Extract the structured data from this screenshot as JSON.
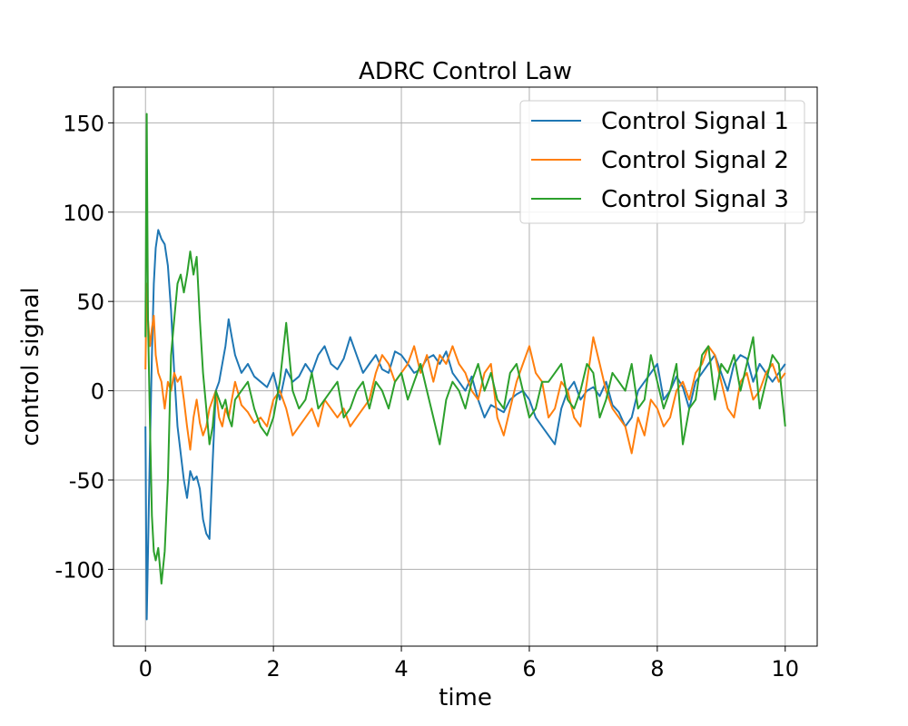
{
  "chart_data": {
    "type": "line",
    "title": "ADRC Control Law",
    "xlabel": "time",
    "ylabel": "control signal",
    "xlim": [
      -0.5,
      10.5
    ],
    "ylim": [
      -143,
      170
    ],
    "xticks": [
      0,
      2,
      4,
      6,
      8,
      10
    ],
    "yticks": [
      -100,
      -50,
      0,
      50,
      100,
      150
    ],
    "ytick_labels": [
      "-100",
      "-50",
      "0",
      "50",
      "100",
      "150"
    ],
    "xtick_labels": [
      "0",
      "2",
      "4",
      "6",
      "8",
      "10"
    ],
    "grid": true,
    "legend_position": "top-right",
    "series": [
      {
        "name": "Control Signal 1",
        "color": "#1f77b4",
        "x": [
          0,
          0.02,
          0.04,
          0.07,
          0.1,
          0.13,
          0.16,
          0.2,
          0.25,
          0.3,
          0.35,
          0.4,
          0.45,
          0.5,
          0.55,
          0.6,
          0.65,
          0.7,
          0.75,
          0.8,
          0.85,
          0.9,
          0.95,
          1.0,
          1.05,
          1.1,
          1.15,
          1.2,
          1.25,
          1.3,
          1.35,
          1.4,
          1.5,
          1.6,
          1.7,
          1.8,
          1.9,
          2.0,
          2.1,
          2.2,
          2.3,
          2.4,
          2.5,
          2.6,
          2.7,
          2.8,
          2.9,
          3.0,
          3.1,
          3.2,
          3.3,
          3.4,
          3.5,
          3.6,
          3.7,
          3.8,
          3.9,
          4.0,
          4.1,
          4.2,
          4.3,
          4.4,
          4.5,
          4.6,
          4.7,
          4.8,
          4.9,
          5.0,
          5.1,
          5.2,
          5.3,
          5.4,
          5.5,
          5.6,
          5.7,
          5.8,
          5.9,
          6.0,
          6.1,
          6.2,
          6.3,
          6.4,
          6.5,
          6.6,
          6.7,
          6.8,
          6.9,
          7.0,
          7.1,
          7.2,
          7.3,
          7.4,
          7.5,
          7.6,
          7.7,
          7.8,
          7.9,
          8.0,
          8.1,
          8.2,
          8.3,
          8.4,
          8.5,
          8.6,
          8.7,
          8.8,
          8.9,
          9.0,
          9.1,
          9.2,
          9.3,
          9.4,
          9.5,
          9.6,
          9.7,
          9.8,
          9.9,
          10.0
        ],
        "y": [
          -20,
          -128,
          -90,
          -30,
          20,
          60,
          80,
          90,
          85,
          82,
          70,
          45,
          10,
          -20,
          -35,
          -50,
          -60,
          -45,
          -50,
          -48,
          -55,
          -72,
          -80,
          -83,
          -40,
          0,
          5,
          15,
          25,
          40,
          30,
          20,
          10,
          15,
          8,
          5,
          2,
          10,
          -5,
          12,
          5,
          8,
          15,
          10,
          20,
          25,
          15,
          12,
          18,
          30,
          20,
          10,
          15,
          20,
          12,
          10,
          22,
          20,
          15,
          10,
          12,
          18,
          20,
          15,
          22,
          10,
          5,
          0,
          8,
          -5,
          -15,
          -8,
          -10,
          -12,
          -5,
          -2,
          0,
          -5,
          -15,
          -20,
          -25,
          -30,
          -10,
          0,
          5,
          -5,
          0,
          2,
          -3,
          5,
          -8,
          -12,
          -20,
          -15,
          0,
          5,
          10,
          15,
          -5,
          0,
          8,
          2,
          -10,
          5,
          10,
          15,
          20,
          10,
          0,
          15,
          20,
          18,
          5,
          15,
          10,
          5,
          10,
          15
        ]
      },
      {
        "name": "Control Signal 2",
        "color": "#ff7f0e",
        "x": [
          0,
          0.02,
          0.04,
          0.07,
          0.1,
          0.13,
          0.16,
          0.2,
          0.25,
          0.3,
          0.35,
          0.4,
          0.45,
          0.5,
          0.55,
          0.6,
          0.65,
          0.7,
          0.75,
          0.8,
          0.85,
          0.9,
          0.95,
          1.0,
          1.05,
          1.1,
          1.15,
          1.2,
          1.25,
          1.3,
          1.35,
          1.4,
          1.5,
          1.6,
          1.7,
          1.8,
          1.9,
          2.0,
          2.1,
          2.2,
          2.3,
          2.4,
          2.5,
          2.6,
          2.7,
          2.8,
          2.9,
          3.0,
          3.1,
          3.2,
          3.3,
          3.4,
          3.5,
          3.6,
          3.7,
          3.8,
          3.9,
          4.0,
          4.1,
          4.2,
          4.3,
          4.4,
          4.5,
          4.6,
          4.7,
          4.8,
          4.9,
          5.0,
          5.1,
          5.2,
          5.3,
          5.4,
          5.5,
          5.6,
          5.7,
          5.8,
          5.9,
          6.0,
          6.1,
          6.2,
          6.3,
          6.4,
          6.5,
          6.6,
          6.7,
          6.8,
          6.9,
          7.0,
          7.1,
          7.2,
          7.3,
          7.4,
          7.5,
          7.6,
          7.7,
          7.8,
          7.9,
          8.0,
          8.1,
          8.2,
          8.3,
          8.4,
          8.5,
          8.6,
          8.7,
          8.8,
          8.9,
          9.0,
          9.1,
          9.2,
          9.3,
          9.4,
          9.5,
          9.6,
          9.7,
          9.8,
          9.9,
          10.0
        ],
        "y": [
          12,
          60,
          40,
          25,
          35,
          42,
          20,
          10,
          5,
          -10,
          5,
          0,
          10,
          5,
          8,
          -5,
          -20,
          -33,
          -15,
          -5,
          -18,
          -25,
          -20,
          -10,
          -5,
          0,
          -15,
          -20,
          -10,
          -15,
          -5,
          5,
          -8,
          -12,
          -18,
          -15,
          -20,
          -5,
          0,
          -10,
          -25,
          -20,
          -15,
          -10,
          -20,
          -5,
          -10,
          -15,
          -10,
          -20,
          -15,
          -10,
          -5,
          10,
          20,
          15,
          5,
          10,
          15,
          25,
          10,
          20,
          5,
          20,
          15,
          25,
          15,
          10,
          0,
          -5,
          10,
          15,
          -15,
          -25,
          -10,
          5,
          15,
          25,
          10,
          5,
          -15,
          -10,
          5,
          0,
          -15,
          -20,
          5,
          30,
          15,
          0,
          -10,
          -15,
          -20,
          -35,
          -15,
          -25,
          -5,
          -10,
          -20,
          -15,
          0,
          5,
          -5,
          10,
          15,
          25,
          20,
          5,
          -10,
          -15,
          5,
          10,
          -5,
          0,
          10,
          15,
          5,
          10
        ]
      },
      {
        "name": "Control Signal 3",
        "color": "#2ca02c",
        "x": [
          0,
          0.02,
          0.04,
          0.07,
          0.1,
          0.13,
          0.16,
          0.2,
          0.25,
          0.3,
          0.35,
          0.4,
          0.45,
          0.5,
          0.55,
          0.6,
          0.65,
          0.7,
          0.75,
          0.8,
          0.85,
          0.9,
          0.95,
          1.0,
          1.05,
          1.1,
          1.15,
          1.2,
          1.25,
          1.3,
          1.35,
          1.4,
          1.5,
          1.6,
          1.7,
          1.8,
          1.9,
          2.0,
          2.1,
          2.2,
          2.3,
          2.4,
          2.5,
          2.6,
          2.7,
          2.8,
          2.9,
          3.0,
          3.1,
          3.2,
          3.3,
          3.4,
          3.5,
          3.6,
          3.7,
          3.8,
          3.9,
          4.0,
          4.1,
          4.2,
          4.3,
          4.4,
          4.5,
          4.6,
          4.7,
          4.8,
          4.9,
          5.0,
          5.1,
          5.2,
          5.3,
          5.4,
          5.5,
          5.6,
          5.7,
          5.8,
          5.9,
          6.0,
          6.1,
          6.2,
          6.3,
          6.4,
          6.5,
          6.6,
          6.7,
          6.8,
          6.9,
          7.0,
          7.1,
          7.2,
          7.3,
          7.4,
          7.5,
          7.6,
          7.7,
          7.8,
          7.9,
          8.0,
          8.1,
          8.2,
          8.3,
          8.4,
          8.5,
          8.6,
          8.7,
          8.8,
          8.9,
          9.0,
          9.1,
          9.2,
          9.3,
          9.4,
          9.5,
          9.6,
          9.7,
          9.8,
          9.9,
          10.0
        ],
        "y": [
          30,
          155,
          40,
          -20,
          -70,
          -90,
          -95,
          -88,
          -108,
          -90,
          -50,
          20,
          40,
          60,
          65,
          55,
          65,
          78,
          65,
          75,
          40,
          10,
          -10,
          -30,
          -20,
          0,
          -5,
          -10,
          -5,
          -15,
          -20,
          -5,
          0,
          5,
          -10,
          -20,
          -25,
          -15,
          5,
          38,
          0,
          -10,
          -5,
          10,
          -10,
          -5,
          0,
          5,
          -15,
          -10,
          0,
          5,
          -10,
          5,
          0,
          -10,
          5,
          10,
          -5,
          5,
          15,
          0,
          -15,
          -30,
          -5,
          5,
          0,
          -10,
          5,
          15,
          0,
          10,
          -5,
          -10,
          10,
          15,
          0,
          -15,
          -10,
          5,
          5,
          10,
          15,
          -5,
          -10,
          0,
          15,
          10,
          -15,
          -5,
          10,
          5,
          0,
          15,
          -10,
          -5,
          20,
          5,
          -10,
          0,
          15,
          -30,
          -10,
          -5,
          20,
          25,
          -5,
          15,
          10,
          20,
          0,
          15,
          30,
          -10,
          5,
          20,
          15,
          -20
        ]
      }
    ]
  }
}
